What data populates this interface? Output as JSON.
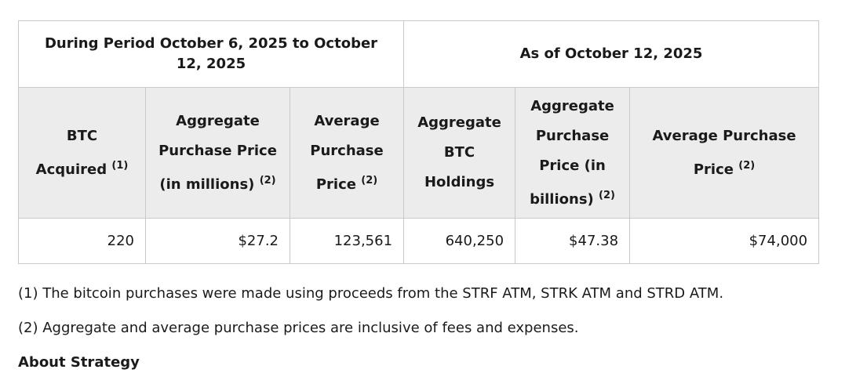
{
  "table": {
    "period_header": "During Period October 6, 2025 to October 12, 2025",
    "asof_header": "As of October 12, 2025",
    "columns": [
      {
        "label": "BTC Acquired",
        "note": "(1)"
      },
      {
        "label": "Aggregate Purchase Price (in millions)",
        "note": "(2)"
      },
      {
        "label": "Average Purchase Price",
        "note": "(2)"
      },
      {
        "label": "Aggregate BTC Holdings",
        "note": ""
      },
      {
        "label": "Aggregate Purchase Price (in billions)",
        "note": "(2)"
      },
      {
        "label": "Average Purchase Price",
        "note": "(2)"
      }
    ],
    "row": [
      "220",
      "$27.2",
      "123,561",
      "640,250",
      "$47.38",
      "$74,000"
    ]
  },
  "notes": {
    "note1": "(1) The bitcoin purchases were made using proceeds from the STRF ATM, STRK ATM and STRD ATM.",
    "note2": "(2) Aggregate and average purchase prices are inclusive of fees and expenses."
  },
  "section_heading": "About Strategy"
}
